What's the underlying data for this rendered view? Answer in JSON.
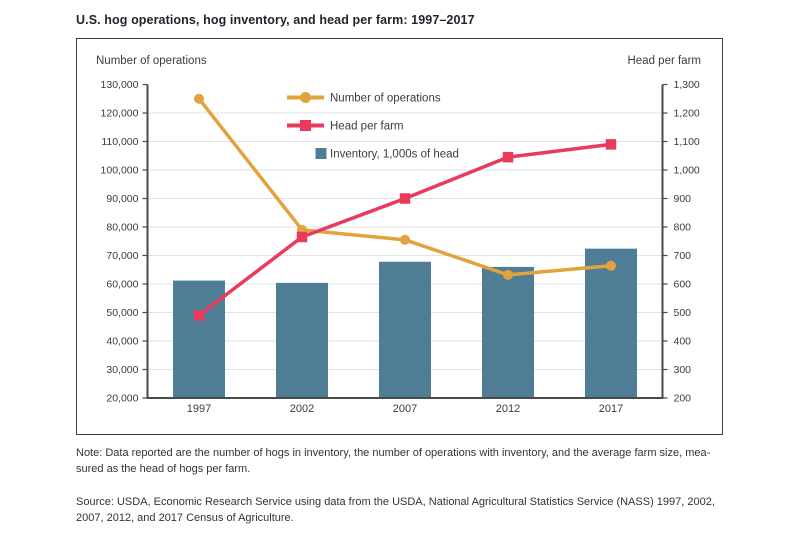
{
  "title": "U.S. hog operations, hog inventory, and head per farm: 1997–2017",
  "chart": {
    "left_axis_label": "Number of operations",
    "right_axis_label": "Head per farm"
  },
  "chart_data": {
    "type": "combo",
    "categories": [
      "1997",
      "2002",
      "2007",
      "2012",
      "2017"
    ],
    "series": [
      {
        "name": "Number of operations",
        "type": "line",
        "axis": "left",
        "marker": "circle",
        "color": "#E2A33C",
        "values": [
          125000,
          79000,
          75500,
          63200,
          66400
        ]
      },
      {
        "name": "Head per farm",
        "type": "line",
        "axis": "right",
        "marker": "square",
        "color": "#E93A5C",
        "values": [
          490,
          765,
          900,
          1045,
          1090
        ]
      },
      {
        "name": "Inventory, 1,000s of head",
        "type": "bar",
        "axis": "left",
        "color": "#4F7D96",
        "values": [
          61200,
          60400,
          67800,
          66000,
          72400
        ]
      }
    ],
    "left_axis": {
      "min": 20000,
      "max": 130000,
      "step": 10000
    },
    "right_axis": {
      "min": 200,
      "max": 1300,
      "step": 100
    },
    "grid": true,
    "legend_position": "top-center-inside",
    "colors": {
      "axis": "#4a4a4a",
      "gridline": "#e2e2e2",
      "text": "#3c3c3c"
    }
  },
  "note_line1": "Note: Data reported are the number of hogs in inventory, the number of operations with inventory, and the average farm size, mea-",
  "note_line2": "sured as the head of hogs per farm.",
  "source_line1": "Source: USDA, Economic Research Service using data from the USDA, National Agricultural Statistics Service (NASS) 1997, 2002,",
  "source_line2": "2007, 2012, and 2017 Census of Agriculture."
}
